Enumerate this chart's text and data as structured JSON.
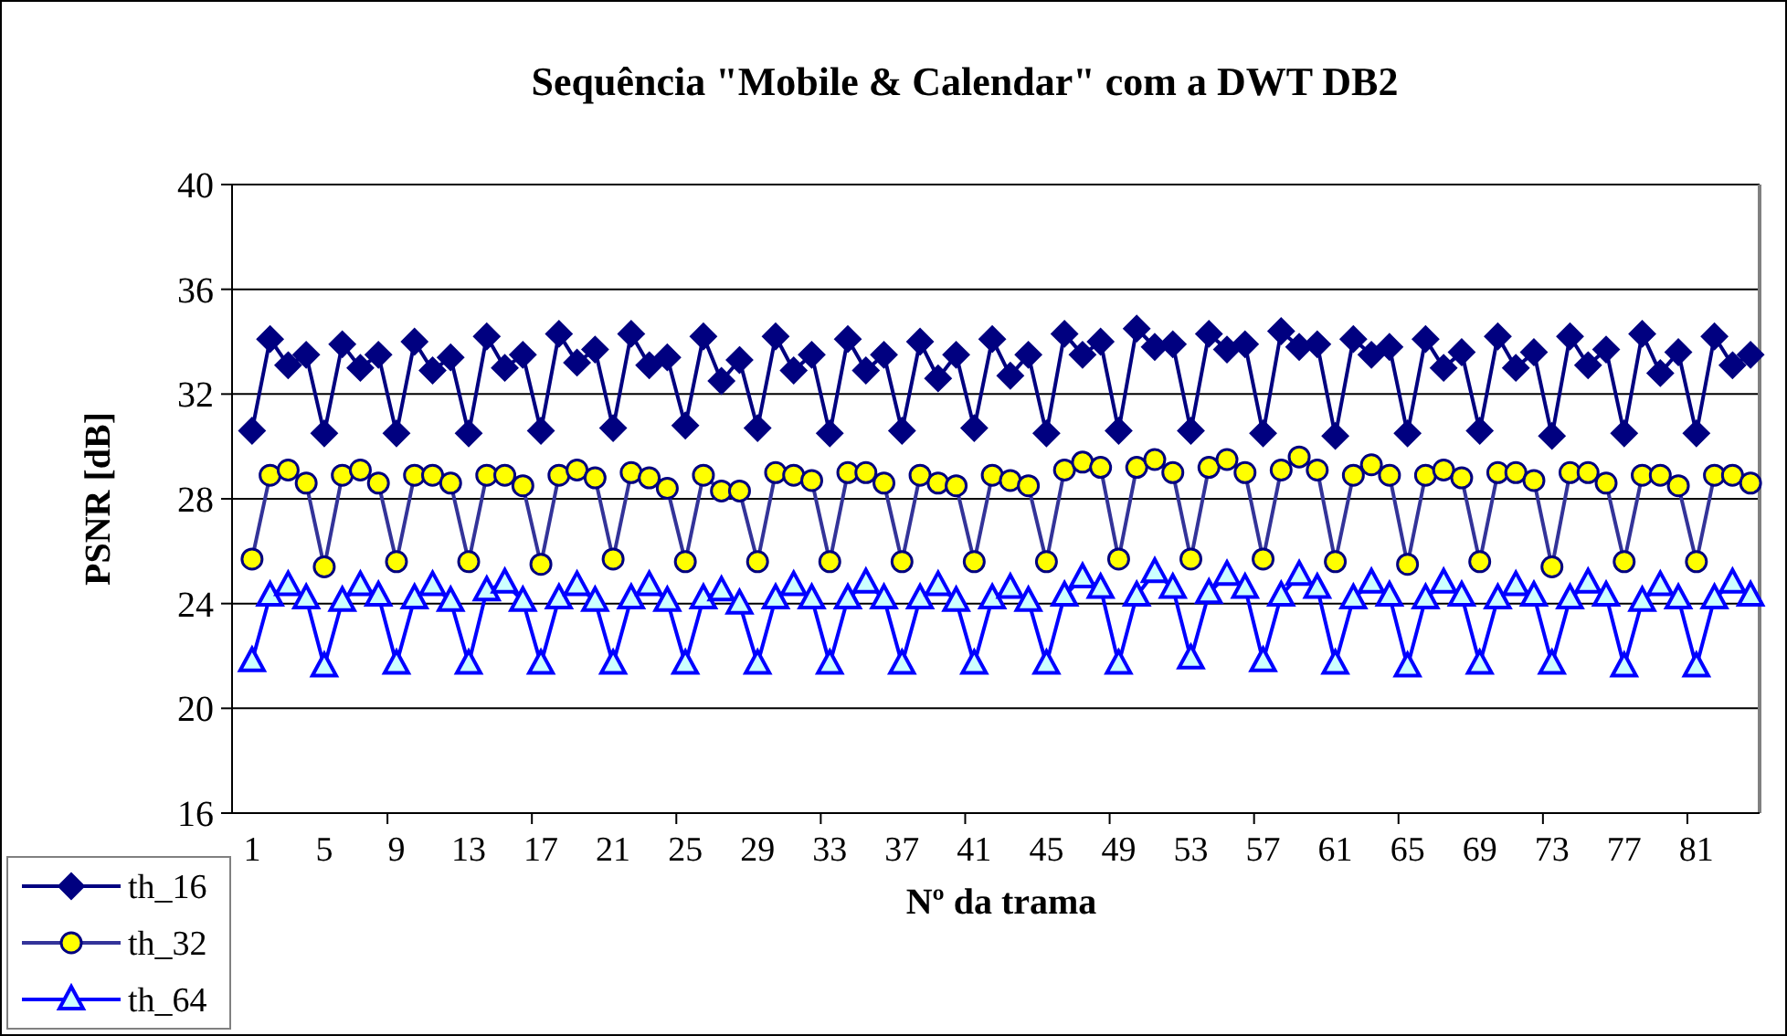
{
  "chart_data": {
    "type": "line",
    "title": "Sequência \"Mobile & Calendar\" com a DWT DB2",
    "xlabel": "Nº da trama",
    "ylabel": "PSNR [dB]",
    "categories": [
      "1",
      null,
      null,
      null,
      "5",
      null,
      null,
      null,
      "9",
      null,
      null,
      null,
      "13",
      null,
      null,
      null,
      "17",
      null,
      null,
      null,
      "21",
      null,
      null,
      null,
      "25",
      null,
      null,
      null,
      "29",
      null,
      null,
      null,
      "33",
      null,
      null,
      null,
      "37",
      null,
      null,
      null,
      "41",
      null,
      null,
      null,
      "45",
      null,
      null,
      null,
      "49",
      null,
      null,
      null,
      "53",
      null,
      null,
      null,
      "57",
      null,
      null,
      null,
      "61",
      null,
      null,
      null,
      "65",
      null,
      null,
      null,
      "69",
      null,
      null,
      null,
      "73",
      null,
      null,
      null,
      "77",
      null,
      null,
      null,
      "81",
      null,
      null,
      null
    ],
    "ylim": [
      16,
      40
    ],
    "yticks": [
      16,
      20,
      24,
      28,
      32,
      36,
      40
    ],
    "grid": "y",
    "legend": "bottom left",
    "series": [
      {
        "name": "th_16",
        "color": "#000080",
        "marker": "diamond",
        "values": [
          30.6,
          34.1,
          33.1,
          33.5,
          30.5,
          33.9,
          33.0,
          33.5,
          30.5,
          34.0,
          32.9,
          33.4,
          30.5,
          34.2,
          33.0,
          33.5,
          30.6,
          34.3,
          33.2,
          33.7,
          30.7,
          34.3,
          33.1,
          33.4,
          30.8,
          34.2,
          32.5,
          33.3,
          30.7,
          34.2,
          32.9,
          33.5,
          30.5,
          34.1,
          32.9,
          33.5,
          30.6,
          34.0,
          32.6,
          33.5,
          30.7,
          34.1,
          32.7,
          33.5,
          30.5,
          34.3,
          33.5,
          34.0,
          30.6,
          34.5,
          33.8,
          33.9,
          30.6,
          34.3,
          33.7,
          33.9,
          30.5,
          34.4,
          33.8,
          33.9,
          30.4,
          34.1,
          33.5,
          33.8,
          30.5,
          34.1,
          33.0,
          33.6,
          30.6,
          34.2,
          33.0,
          33.6,
          30.4,
          34.2,
          33.1,
          33.7,
          30.5,
          34.3,
          32.8,
          33.6,
          30.5,
          34.2,
          33.1,
          33.5
        ]
      },
      {
        "name": "th_32",
        "color": "#333399",
        "marker": "circle",
        "values": [
          25.7,
          28.9,
          29.1,
          28.6,
          25.4,
          28.9,
          29.1,
          28.6,
          25.6,
          28.9,
          28.9,
          28.6,
          25.6,
          28.9,
          28.9,
          28.5,
          25.5,
          28.9,
          29.1,
          28.8,
          25.7,
          29.0,
          28.8,
          28.4,
          25.6,
          28.9,
          28.3,
          28.3,
          25.6,
          29.0,
          28.9,
          28.7,
          25.6,
          29.0,
          29.0,
          28.6,
          25.6,
          28.9,
          28.6,
          28.5,
          25.6,
          28.9,
          28.7,
          28.5,
          25.6,
          29.1,
          29.4,
          29.2,
          25.7,
          29.2,
          29.5,
          29.0,
          25.7,
          29.2,
          29.5,
          29.0,
          25.7,
          29.1,
          29.6,
          29.1,
          25.6,
          28.9,
          29.3,
          28.9,
          25.5,
          28.9,
          29.1,
          28.8,
          25.6,
          29.0,
          29.0,
          28.7,
          25.4,
          29.0,
          29.0,
          28.6,
          25.6,
          28.9,
          28.9,
          28.5,
          25.6,
          28.9,
          28.9,
          28.6
        ]
      },
      {
        "name": "th_64",
        "color": "#0000ff",
        "marker": "triangle",
        "values": [
          21.8,
          24.3,
          24.7,
          24.2,
          21.6,
          24.1,
          24.7,
          24.3,
          21.7,
          24.2,
          24.7,
          24.1,
          21.7,
          24.5,
          24.8,
          24.1,
          21.7,
          24.2,
          24.7,
          24.1,
          21.7,
          24.2,
          24.7,
          24.1,
          21.7,
          24.2,
          24.5,
          24.0,
          21.7,
          24.2,
          24.7,
          24.2,
          21.7,
          24.2,
          24.8,
          24.2,
          21.7,
          24.2,
          24.7,
          24.1,
          21.7,
          24.2,
          24.6,
          24.1,
          21.7,
          24.3,
          25.0,
          24.6,
          21.7,
          24.3,
          25.2,
          24.6,
          21.9,
          24.4,
          25.1,
          24.6,
          21.8,
          24.3,
          25.1,
          24.6,
          21.7,
          24.2,
          24.8,
          24.3,
          21.6,
          24.2,
          24.8,
          24.3,
          21.7,
          24.2,
          24.7,
          24.3,
          21.7,
          24.2,
          24.8,
          24.3,
          21.6,
          24.1,
          24.7,
          24.2,
          21.6,
          24.2,
          24.8,
          24.3
        ]
      }
    ]
  }
}
